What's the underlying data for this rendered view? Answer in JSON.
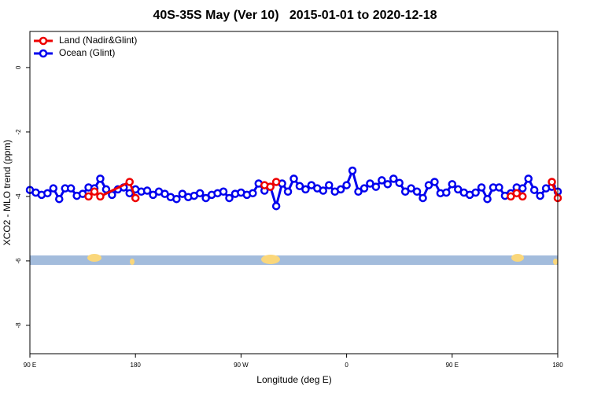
{
  "chart_data": {
    "type": "line",
    "title": "40S-35S May (Ver 10)   2015-01-01 to 2020-12-18",
    "xlabel": "Longitude (deg E)",
    "ylabel": "XCO2 - MLO trend (ppm)",
    "xlim": [
      90,
      540
    ],
    "ylim": [
      -8.88,
      1.12
    ],
    "xticks": [
      {
        "value": 90,
        "label": "90 E"
      },
      {
        "value": 180,
        "label": "180"
      },
      {
        "value": 270,
        "label": "90 W"
      },
      {
        "value": 360,
        "label": "0"
      },
      {
        "value": 450,
        "label": "90 E"
      },
      {
        "value": 540,
        "label": "180"
      }
    ],
    "yticks": [
      0,
      -2,
      -4,
      -6,
      -8
    ],
    "legend": "top-left",
    "series": [
      {
        "name": "Land (Nadir&Glint)",
        "color": "#ee0000",
        "x": [
          140,
          145,
          150,
          175,
          180,
          null,
          290,
          295,
          300,
          null,
          500,
          505,
          510,
          null,
          535,
          540
        ],
        "values": [
          -4.0,
          -3.85,
          -4.0,
          -3.55,
          -4.05,
          null,
          -3.65,
          -3.7,
          -3.55,
          null,
          -4.0,
          -3.9,
          -4.0,
          null,
          -3.55,
          -4.05
        ]
      },
      {
        "name": "Ocean (Glint)",
        "color": "#0000ee",
        "x": [
          90,
          95,
          100,
          105,
          110,
          115,
          120,
          125,
          130,
          135,
          140,
          145,
          150,
          155,
          160,
          165,
          170,
          175,
          180,
          185,
          190,
          195,
          200,
          205,
          210,
          215,
          220,
          225,
          230,
          235,
          240,
          245,
          250,
          255,
          260,
          265,
          270,
          275,
          280,
          285,
          290,
          295,
          300,
          305,
          310,
          315,
          320,
          325,
          330,
          335,
          340,
          345,
          350,
          355,
          360,
          365,
          370,
          375,
          380,
          385,
          390,
          395,
          400,
          405,
          410,
          415,
          420,
          425,
          430,
          435,
          440,
          445,
          450,
          455,
          460,
          465,
          470,
          475,
          480,
          485,
          490,
          495,
          500,
          505,
          510,
          515,
          520,
          525,
          530,
          535,
          540
        ],
        "values": [
          -3.8,
          -3.88,
          -3.95,
          -3.9,
          -3.75,
          -4.08,
          -3.75,
          -3.75,
          -3.98,
          -3.92,
          -3.72,
          -3.75,
          -3.45,
          -3.78,
          -3.95,
          -3.78,
          -3.72,
          -3.9,
          -3.78,
          -3.85,
          -3.82,
          -3.95,
          -3.85,
          -3.92,
          -4.02,
          -4.08,
          -3.92,
          -4.02,
          -3.98,
          -3.9,
          -4.05,
          -3.95,
          -3.9,
          -3.85,
          -4.05,
          -3.92,
          -3.88,
          -3.95,
          -3.9,
          -3.6,
          -3.82,
          -3.7,
          -4.3,
          -3.6,
          -3.85,
          -3.45,
          -3.68,
          -3.78,
          -3.65,
          -3.75,
          -3.82,
          -3.65,
          -3.85,
          -3.78,
          -3.65,
          -3.2,
          -3.85,
          -3.75,
          -3.6,
          -3.7,
          -3.5,
          -3.62,
          -3.45,
          -3.58,
          -3.85,
          -3.75,
          -3.85,
          -4.05,
          -3.65,
          -3.55,
          -3.9,
          -3.88,
          -3.62,
          -3.78,
          -3.88,
          -3.95,
          -3.88,
          -3.72,
          -4.08,
          -3.72,
          -3.72,
          -3.98,
          -3.9,
          -3.72,
          -3.75,
          -3.45,
          -3.8,
          -3.98,
          -3.75,
          -3.7,
          -3.85
        ]
      }
    ]
  }
}
